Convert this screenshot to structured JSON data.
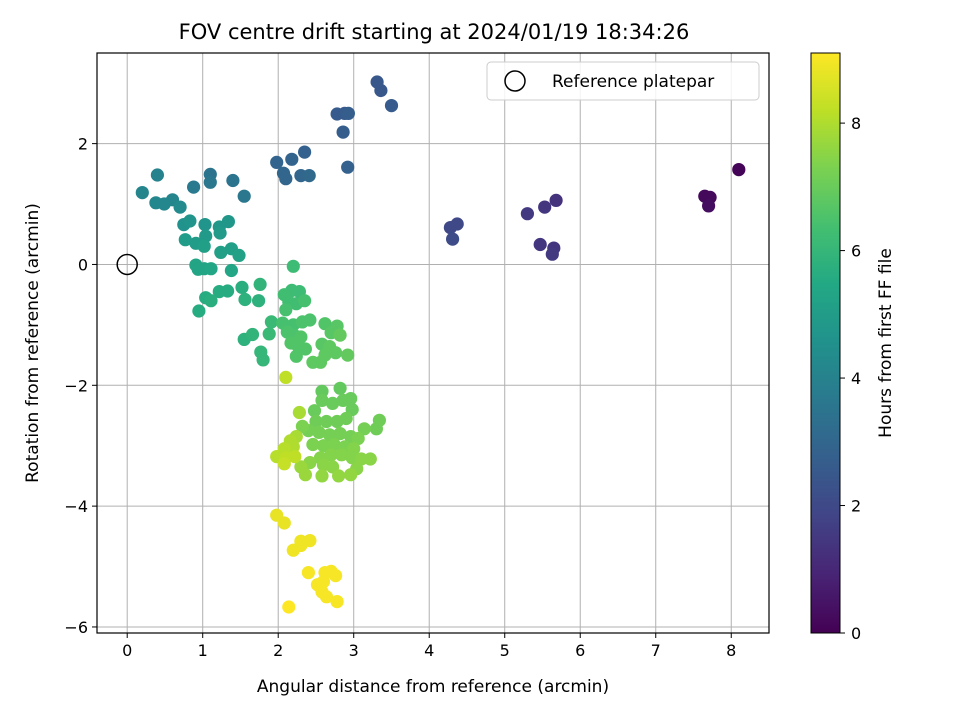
{
  "chart_data": {
    "type": "scatter",
    "title": "FOV centre drift starting at 2024/01/19 18:34:26",
    "xlabel": "Angular distance from reference (arcmin)",
    "ylabel": "Rotation from reference (arcmin)",
    "xlim": [
      -0.4,
      8.5
    ],
    "ylim": [
      -6.1,
      3.5
    ],
    "xticks": [
      0,
      1,
      2,
      3,
      4,
      5,
      6,
      7,
      8
    ],
    "yticks": [
      -6,
      -4,
      -2,
      0,
      2
    ],
    "grid": true,
    "legend": {
      "placement": "top-right",
      "entries": [
        {
          "label": "Reference platepar",
          "marker": "open-circle"
        }
      ]
    },
    "reference_point": {
      "x": 0,
      "y": 0
    },
    "colorbar": {
      "label": "Hours from first FF file",
      "colormap": "viridis",
      "range": [
        0,
        9.1
      ],
      "ticks": [
        0,
        2,
        4,
        6,
        8
      ]
    },
    "points": [
      {
        "x": 8.1,
        "y": 1.57,
        "c": 0.1
      },
      {
        "x": 7.65,
        "y": 1.13,
        "c": 0.2
      },
      {
        "x": 7.72,
        "y": 1.11,
        "c": 0.2
      },
      {
        "x": 7.7,
        "y": 0.97,
        "c": 0.3
      },
      {
        "x": 5.68,
        "y": 1.06,
        "c": 1.3
      },
      {
        "x": 5.53,
        "y": 0.95,
        "c": 1.4
      },
      {
        "x": 5.3,
        "y": 0.84,
        "c": 1.5
      },
      {
        "x": 5.47,
        "y": 0.33,
        "c": 1.4
      },
      {
        "x": 5.65,
        "y": 0.27,
        "c": 1.4
      },
      {
        "x": 5.63,
        "y": 0.17,
        "c": 1.5
      },
      {
        "x": 4.28,
        "y": 0.61,
        "c": 2.0
      },
      {
        "x": 4.37,
        "y": 0.67,
        "c": 2.0
      },
      {
        "x": 4.31,
        "y": 0.42,
        "c": 2.1
      },
      {
        "x": 3.31,
        "y": 3.02,
        "c": 2.5
      },
      {
        "x": 3.36,
        "y": 2.88,
        "c": 2.5
      },
      {
        "x": 3.5,
        "y": 2.63,
        "c": 2.6
      },
      {
        "x": 2.78,
        "y": 2.49,
        "c": 2.6
      },
      {
        "x": 2.88,
        "y": 2.5,
        "c": 2.6
      },
      {
        "x": 2.93,
        "y": 2.5,
        "c": 2.7
      },
      {
        "x": 2.86,
        "y": 2.19,
        "c": 2.7
      },
      {
        "x": 2.92,
        "y": 1.61,
        "c": 2.8
      },
      {
        "x": 2.35,
        "y": 1.86,
        "c": 2.8
      },
      {
        "x": 2.18,
        "y": 1.74,
        "c": 2.9
      },
      {
        "x": 1.98,
        "y": 1.69,
        "c": 2.9
      },
      {
        "x": 2.07,
        "y": 1.51,
        "c": 3.0
      },
      {
        "x": 2.1,
        "y": 1.42,
        "c": 3.0
      },
      {
        "x": 2.3,
        "y": 1.47,
        "c": 3.0
      },
      {
        "x": 2.41,
        "y": 1.47,
        "c": 3.1
      },
      {
        "x": 1.1,
        "y": 1.49,
        "c": 3.5
      },
      {
        "x": 1.1,
        "y": 1.36,
        "c": 3.6
      },
      {
        "x": 1.4,
        "y": 1.39,
        "c": 3.5
      },
      {
        "x": 1.55,
        "y": 1.13,
        "c": 3.6
      },
      {
        "x": 0.88,
        "y": 1.28,
        "c": 3.7
      },
      {
        "x": 0.4,
        "y": 1.48,
        "c": 4.0
      },
      {
        "x": 0.2,
        "y": 1.19,
        "c": 4.1
      },
      {
        "x": 0.6,
        "y": 1.07,
        "c": 4.1
      },
      {
        "x": 0.38,
        "y": 1.02,
        "c": 4.2
      },
      {
        "x": 0.49,
        "y": 1.0,
        "c": 4.2
      },
      {
        "x": 0.7,
        "y": 0.95,
        "c": 4.3
      },
      {
        "x": 0.75,
        "y": 0.66,
        "c": 4.6
      },
      {
        "x": 0.83,
        "y": 0.72,
        "c": 4.7
      },
      {
        "x": 1.03,
        "y": 0.66,
        "c": 4.7
      },
      {
        "x": 1.22,
        "y": 0.62,
        "c": 4.8
      },
      {
        "x": 1.34,
        "y": 0.71,
        "c": 4.8
      },
      {
        "x": 1.23,
        "y": 0.52,
        "c": 4.9
      },
      {
        "x": 1.04,
        "y": 0.47,
        "c": 4.9
      },
      {
        "x": 0.77,
        "y": 0.41,
        "c": 5.0
      },
      {
        "x": 0.91,
        "y": 0.35,
        "c": 5.0
      },
      {
        "x": 1.02,
        "y": 0.3,
        "c": 5.1
      },
      {
        "x": 1.24,
        "y": 0.2,
        "c": 5.1
      },
      {
        "x": 1.38,
        "y": 0.26,
        "c": 5.1
      },
      {
        "x": 1.48,
        "y": 0.15,
        "c": 5.2
      },
      {
        "x": 0.91,
        "y": -0.01,
        "c": 5.3
      },
      {
        "x": 0.94,
        "y": -0.08,
        "c": 5.3
      },
      {
        "x": 1.02,
        "y": -0.07,
        "c": 5.3
      },
      {
        "x": 1.11,
        "y": -0.07,
        "c": 5.4
      },
      {
        "x": 1.38,
        "y": -0.1,
        "c": 5.4
      },
      {
        "x": 1.22,
        "y": -0.45,
        "c": 5.6
      },
      {
        "x": 1.33,
        "y": -0.44,
        "c": 5.6
      },
      {
        "x": 1.04,
        "y": -0.55,
        "c": 5.6
      },
      {
        "x": 1.11,
        "y": -0.6,
        "c": 5.7
      },
      {
        "x": 0.95,
        "y": -0.77,
        "c": 5.6
      },
      {
        "x": 1.52,
        "y": -0.38,
        "c": 5.7
      },
      {
        "x": 1.56,
        "y": -0.58,
        "c": 5.8
      },
      {
        "x": 1.74,
        "y": -0.6,
        "c": 5.8
      },
      {
        "x": 1.76,
        "y": -0.33,
        "c": 5.9
      },
      {
        "x": 1.55,
        "y": -1.24,
        "c": 5.8
      },
      {
        "x": 1.66,
        "y": -1.16,
        "c": 5.9
      },
      {
        "x": 1.77,
        "y": -1.45,
        "c": 6.0
      },
      {
        "x": 1.8,
        "y": -1.58,
        "c": 6.0
      },
      {
        "x": 1.88,
        "y": -1.15,
        "c": 6.1
      },
      {
        "x": 1.91,
        "y": -0.95,
        "c": 6.1
      },
      {
        "x": 2.2,
        "y": -0.03,
        "c": 6.2
      },
      {
        "x": 2.18,
        "y": -0.43,
        "c": 6.2
      },
      {
        "x": 2.28,
        "y": -0.45,
        "c": 6.2
      },
      {
        "x": 2.08,
        "y": -0.5,
        "c": 6.3
      },
      {
        "x": 2.14,
        "y": -0.62,
        "c": 6.3
      },
      {
        "x": 2.24,
        "y": -0.65,
        "c": 6.3
      },
      {
        "x": 2.35,
        "y": -0.6,
        "c": 6.4
      },
      {
        "x": 2.1,
        "y": -0.75,
        "c": 6.4
      },
      {
        "x": 2.06,
        "y": -0.97,
        "c": 6.4
      },
      {
        "x": 2.2,
        "y": -1.0,
        "c": 6.4
      },
      {
        "x": 2.32,
        "y": -0.95,
        "c": 6.5
      },
      {
        "x": 2.42,
        "y": -0.92,
        "c": 6.5
      },
      {
        "x": 2.12,
        "y": -1.12,
        "c": 6.5
      },
      {
        "x": 2.22,
        "y": -1.18,
        "c": 6.5
      },
      {
        "x": 2.3,
        "y": -1.2,
        "c": 6.6
      },
      {
        "x": 2.17,
        "y": -1.3,
        "c": 6.6
      },
      {
        "x": 2.26,
        "y": -1.35,
        "c": 6.6
      },
      {
        "x": 2.36,
        "y": -1.4,
        "c": 6.6
      },
      {
        "x": 2.24,
        "y": -1.52,
        "c": 6.6
      },
      {
        "x": 2.62,
        "y": -0.98,
        "c": 6.6
      },
      {
        "x": 2.78,
        "y": -1.02,
        "c": 6.7
      },
      {
        "x": 2.7,
        "y": -1.13,
        "c": 6.7
      },
      {
        "x": 2.58,
        "y": -1.32,
        "c": 6.7
      },
      {
        "x": 2.68,
        "y": -1.36,
        "c": 6.8
      },
      {
        "x": 2.62,
        "y": -1.5,
        "c": 6.8
      },
      {
        "x": 2.76,
        "y": -1.46,
        "c": 6.8
      },
      {
        "x": 2.56,
        "y": -1.62,
        "c": 6.8
      },
      {
        "x": 2.46,
        "y": -1.62,
        "c": 6.8
      },
      {
        "x": 2.92,
        "y": -1.5,
        "c": 6.9
      },
      {
        "x": 2.82,
        "y": -1.17,
        "c": 6.9
      },
      {
        "x": 2.58,
        "y": -2.1,
        "c": 6.9
      },
      {
        "x": 2.82,
        "y": -2.05,
        "c": 6.9
      },
      {
        "x": 2.58,
        "y": -2.25,
        "c": 7.0
      },
      {
        "x": 2.72,
        "y": -2.3,
        "c": 7.0
      },
      {
        "x": 2.86,
        "y": -2.25,
        "c": 7.0
      },
      {
        "x": 2.96,
        "y": -2.22,
        "c": 7.0
      },
      {
        "x": 2.48,
        "y": -2.42,
        "c": 7.0
      },
      {
        "x": 2.98,
        "y": -2.4,
        "c": 7.0
      },
      {
        "x": 2.5,
        "y": -2.6,
        "c": 7.1
      },
      {
        "x": 2.64,
        "y": -2.6,
        "c": 7.1
      },
      {
        "x": 2.78,
        "y": -2.6,
        "c": 7.1
      },
      {
        "x": 2.9,
        "y": -2.55,
        "c": 7.1
      },
      {
        "x": 3.34,
        "y": -2.58,
        "c": 7.1
      },
      {
        "x": 3.3,
        "y": -2.72,
        "c": 7.1
      },
      {
        "x": 3.14,
        "y": -2.72,
        "c": 7.2
      },
      {
        "x": 2.4,
        "y": -2.75,
        "c": 7.2
      },
      {
        "x": 2.54,
        "y": -2.78,
        "c": 7.2
      },
      {
        "x": 2.68,
        "y": -2.82,
        "c": 7.2
      },
      {
        "x": 2.82,
        "y": -2.8,
        "c": 7.2
      },
      {
        "x": 2.96,
        "y": -2.85,
        "c": 7.2
      },
      {
        "x": 3.06,
        "y": -2.88,
        "c": 7.3
      },
      {
        "x": 2.32,
        "y": -2.68,
        "c": 7.3
      },
      {
        "x": 2.46,
        "y": -2.98,
        "c": 7.3
      },
      {
        "x": 2.6,
        "y": -3.0,
        "c": 7.3
      },
      {
        "x": 2.74,
        "y": -2.98,
        "c": 7.3
      },
      {
        "x": 2.88,
        "y": -3.02,
        "c": 7.3
      },
      {
        "x": 3.0,
        "y": -3.05,
        "c": 7.4
      },
      {
        "x": 2.56,
        "y": -3.2,
        "c": 7.4
      },
      {
        "x": 2.7,
        "y": -3.15,
        "c": 7.4
      },
      {
        "x": 2.84,
        "y": -3.15,
        "c": 7.4
      },
      {
        "x": 2.98,
        "y": -3.2,
        "c": 7.4
      },
      {
        "x": 3.1,
        "y": -3.22,
        "c": 7.5
      },
      {
        "x": 3.22,
        "y": -3.22,
        "c": 7.5
      },
      {
        "x": 2.42,
        "y": -3.28,
        "c": 7.5
      },
      {
        "x": 2.6,
        "y": -3.32,
        "c": 7.5
      },
      {
        "x": 2.72,
        "y": -3.35,
        "c": 7.5
      },
      {
        "x": 3.04,
        "y": -3.38,
        "c": 7.5
      },
      {
        "x": 2.58,
        "y": -3.5,
        "c": 7.6
      },
      {
        "x": 2.8,
        "y": -3.5,
        "c": 7.6
      },
      {
        "x": 2.96,
        "y": -3.48,
        "c": 7.6
      },
      {
        "x": 2.36,
        "y": -3.48,
        "c": 7.7
      },
      {
        "x": 2.3,
        "y": -3.35,
        "c": 7.7
      },
      {
        "x": 2.28,
        "y": -2.45,
        "c": 7.9
      },
      {
        "x": 2.24,
        "y": -2.85,
        "c": 7.9
      },
      {
        "x": 2.16,
        "y": -2.92,
        "c": 8.0
      },
      {
        "x": 2.2,
        "y": -3.02,
        "c": 8.0
      },
      {
        "x": 2.08,
        "y": -3.05,
        "c": 8.1
      },
      {
        "x": 1.98,
        "y": -3.18,
        "c": 8.1
      },
      {
        "x": 2.1,
        "y": -3.2,
        "c": 8.2
      },
      {
        "x": 2.22,
        "y": -3.18,
        "c": 8.2
      },
      {
        "x": 2.08,
        "y": -3.3,
        "c": 8.3
      },
      {
        "x": 2.1,
        "y": -1.87,
        "c": 8.2
      },
      {
        "x": 1.98,
        "y": -4.15,
        "c": 8.8
      },
      {
        "x": 2.08,
        "y": -4.28,
        "c": 8.8
      },
      {
        "x": 2.3,
        "y": -4.58,
        "c": 8.9
      },
      {
        "x": 2.42,
        "y": -4.57,
        "c": 8.9
      },
      {
        "x": 2.3,
        "y": -4.65,
        "c": 8.9
      },
      {
        "x": 2.2,
        "y": -4.73,
        "c": 8.9
      },
      {
        "x": 2.4,
        "y": -5.1,
        "c": 9.0
      },
      {
        "x": 2.62,
        "y": -5.1,
        "c": 9.0
      },
      {
        "x": 2.7,
        "y": -5.08,
        "c": 9.0
      },
      {
        "x": 2.76,
        "y": -5.15,
        "c": 9.0
      },
      {
        "x": 2.6,
        "y": -5.25,
        "c": 9.0
      },
      {
        "x": 2.52,
        "y": -5.3,
        "c": 9.0
      },
      {
        "x": 2.58,
        "y": -5.42,
        "c": 9.0
      },
      {
        "x": 2.64,
        "y": -5.5,
        "c": 9.0
      },
      {
        "x": 2.78,
        "y": -5.58,
        "c": 9.0
      },
      {
        "x": 2.14,
        "y": -5.67,
        "c": 9.1
      }
    ]
  }
}
